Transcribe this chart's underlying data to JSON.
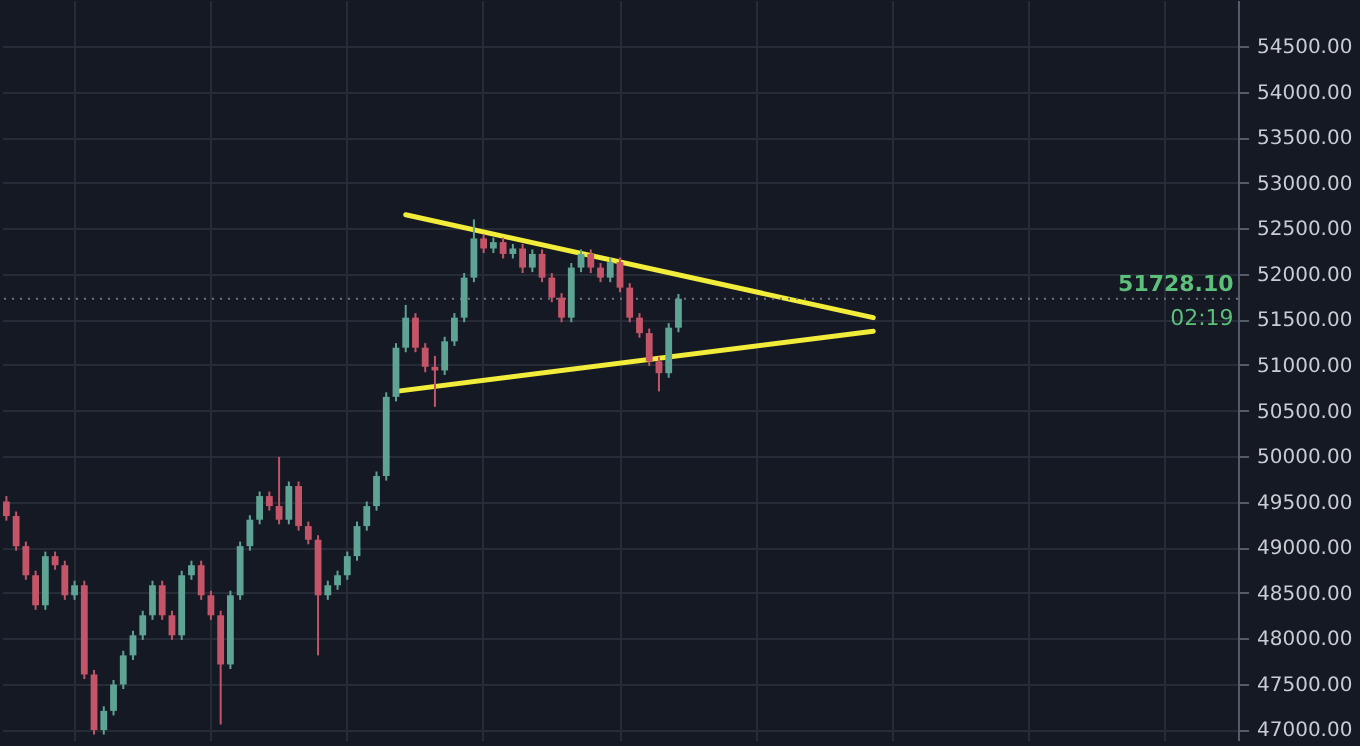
{
  "chart_data": {
    "type": "candlestick",
    "tick_labels": "y",
    "grid": true,
    "categories": [
      null,
      null,
      null,
      null,
      null,
      null,
      null,
      null,
      null,
      null,
      null,
      null,
      null,
      null,
      null,
      null,
      null,
      null,
      null,
      null,
      null,
      null,
      null,
      null,
      null,
      null,
      null,
      null,
      null,
      null,
      null,
      null,
      null,
      null,
      null,
      null,
      null,
      null,
      null,
      null,
      null,
      null,
      null,
      null,
      null,
      null,
      null,
      null,
      null,
      null,
      null,
      null,
      null,
      null,
      null,
      null,
      null,
      null,
      null,
      null,
      null,
      null,
      null,
      null,
      null,
      null,
      null,
      null,
      null,
      null,
      null,
      null,
      null,
      null,
      null,
      null,
      null,
      null,
      null,
      null,
      null,
      null,
      null,
      null,
      null,
      null,
      null,
      null,
      null,
      null,
      null,
      null,
      null,
      null,
      null,
      null,
      null,
      null,
      null,
      null,
      null,
      null,
      null,
      null,
      null,
      null,
      null,
      null,
      null,
      null,
      null,
      null,
      null,
      null,
      null,
      null,
      null,
      null,
      null,
      null,
      null,
      null,
      null,
      null,
      null,
      null,
      null
    ],
    "ohlc": [
      [
        49500,
        49560,
        49290,
        49340
      ],
      [
        49340,
        49390,
        48960,
        49010
      ],
      [
        49010,
        49060,
        48640,
        48690
      ],
      [
        48690,
        48740,
        48310,
        48360
      ],
      [
        48360,
        48950,
        48310,
        48900
      ],
      [
        48900,
        48950,
        48750,
        48800
      ],
      [
        48800,
        48850,
        48420,
        48470
      ],
      [
        48470,
        48630,
        48420,
        48580
      ],
      [
        48580,
        48630,
        47550,
        47600
      ],
      [
        47600,
        47650,
        46940,
        46990
      ],
      [
        46990,
        47250,
        46940,
        47200
      ],
      [
        47200,
        47540,
        47150,
        47490
      ],
      [
        47490,
        47860,
        47440,
        47810
      ],
      [
        47810,
        48080,
        47760,
        48030
      ],
      [
        48030,
        48300,
        47980,
        48250
      ],
      [
        48250,
        48630,
        48200,
        48580
      ],
      [
        48580,
        48630,
        48200,
        48250
      ],
      [
        48250,
        48300,
        47980,
        48030
      ],
      [
        48030,
        48740,
        47980,
        48690
      ],
      [
        48690,
        48850,
        48640,
        48800
      ],
      [
        48800,
        48850,
        48420,
        48470
      ],
      [
        48470,
        48520,
        48200,
        48250
      ],
      [
        48250,
        48300,
        47050,
        47710
      ],
      [
        47710,
        48520,
        47660,
        48470
      ],
      [
        48470,
        49060,
        48420,
        49010
      ],
      [
        49010,
        49350,
        48960,
        49300
      ],
      [
        49300,
        49610,
        49250,
        49560
      ],
      [
        49560,
        49610,
        49400,
        49450
      ],
      [
        49450,
        49990,
        49250,
        49300
      ],
      [
        49300,
        49720,
        49250,
        49670
      ],
      [
        49670,
        49720,
        49180,
        49230
      ],
      [
        49230,
        49280,
        49030,
        49080
      ],
      [
        49080,
        49130,
        47810,
        48470
      ],
      [
        48470,
        48630,
        48420,
        48580
      ],
      [
        48580,
        48740,
        48530,
        48690
      ],
      [
        48690,
        48950,
        48640,
        48900
      ],
      [
        48900,
        49280,
        48850,
        49230
      ],
      [
        49230,
        49500,
        49180,
        49450
      ],
      [
        49450,
        49830,
        49400,
        49780
      ],
      [
        49780,
        50700,
        49730,
        50650
      ],
      [
        50650,
        51240,
        50600,
        51190
      ],
      [
        51190,
        51660,
        51140,
        51520
      ],
      [
        51520,
        51570,
        51140,
        51190
      ],
      [
        51190,
        51240,
        50920,
        50980
      ],
      [
        50980,
        51100,
        50540,
        50940
      ],
      [
        50940,
        51310,
        50890,
        51260
      ],
      [
        51260,
        51570,
        51210,
        51520
      ],
      [
        51520,
        52010,
        51470,
        51960
      ],
      [
        51960,
        52600,
        51910,
        52390
      ],
      [
        52390,
        52440,
        52230,
        52280
      ],
      [
        52280,
        52400,
        52230,
        52350
      ],
      [
        52350,
        52400,
        52170,
        52220
      ],
      [
        52220,
        52330,
        52170,
        52280
      ],
      [
        52280,
        52330,
        52010,
        52070
      ],
      [
        52070,
        52270,
        52020,
        52220
      ],
      [
        52220,
        52270,
        51910,
        51960
      ],
      [
        51960,
        52010,
        51690,
        51740
      ],
      [
        51740,
        51790,
        51470,
        51520
      ],
      [
        51520,
        52120,
        51470,
        52070
      ],
      [
        52070,
        52270,
        52020,
        52220
      ],
      [
        52220,
        52270,
        52010,
        52070
      ],
      [
        52070,
        52120,
        51910,
        51960
      ],
      [
        51960,
        52180,
        51910,
        52130
      ],
      [
        52130,
        52180,
        51800,
        51850
      ],
      [
        51850,
        51900,
        51470,
        51520
      ],
      [
        51520,
        51570,
        51300,
        51350
      ],
      [
        51350,
        51400,
        50990,
        51040
      ],
      [
        51040,
        51090,
        50710,
        50910
      ],
      [
        50910,
        51460,
        50860,
        51410
      ],
      [
        51410,
        51780,
        51360,
        51728.1
      ],
      null,
      null,
      null,
      null,
      null,
      null,
      null,
      null,
      null,
      null,
      null,
      null,
      null,
      null,
      null,
      null,
      null,
      null,
      null,
      null,
      null,
      null,
      null,
      null,
      null,
      null,
      null,
      null,
      null,
      null,
      null,
      null,
      null,
      null,
      null,
      null,
      null,
      null,
      null,
      null,
      null,
      null,
      null,
      null,
      null,
      null,
      null,
      null,
      null,
      null,
      null,
      null,
      null,
      null,
      null,
      null,
      null
    ],
    "series": [
      {
        "type": "line",
        "color": "#f2ec3a",
        "values": [
          null,
          null,
          null,
          null,
          null,
          null,
          null,
          null,
          null,
          null,
          null,
          null,
          null,
          null,
          null,
          null,
          null,
          null,
          null,
          null,
          null,
          null,
          null,
          null,
          null,
          null,
          null,
          null,
          null,
          null,
          null,
          null,
          null,
          null,
          null,
          null,
          null,
          null,
          null,
          null,
          null,
          52650,
          null,
          null,
          null,
          null,
          null,
          null,
          null,
          null,
          null,
          null,
          null,
          null,
          null,
          null,
          null,
          null,
          null,
          null,
          null,
          null,
          null,
          null,
          null,
          null,
          null,
          null,
          null,
          null,
          null,
          null,
          null,
          null,
          null,
          null,
          null,
          null,
          null,
          null,
          null,
          null,
          null,
          null,
          null,
          null,
          null,
          null,
          null,
          51520,
          null,
          null,
          null,
          null,
          null,
          null,
          null,
          null,
          null,
          null,
          null,
          null,
          null,
          null,
          null,
          null,
          null,
          null,
          null,
          null,
          null,
          null,
          null,
          null,
          null,
          null,
          null,
          null,
          null,
          null,
          null,
          null,
          null,
          null,
          null,
          null,
          null
        ]
      },
      {
        "type": "line",
        "color": "#f2ec3a",
        "values": [
          null,
          null,
          null,
          null,
          null,
          null,
          null,
          null,
          null,
          null,
          null,
          null,
          null,
          null,
          null,
          null,
          null,
          null,
          null,
          null,
          null,
          null,
          null,
          null,
          null,
          null,
          null,
          null,
          null,
          null,
          null,
          null,
          null,
          null,
          null,
          null,
          null,
          null,
          null,
          null,
          50710,
          null,
          null,
          null,
          null,
          null,
          null,
          null,
          null,
          null,
          null,
          null,
          null,
          null,
          null,
          null,
          null,
          null,
          null,
          null,
          null,
          null,
          null,
          null,
          null,
          null,
          null,
          null,
          null,
          null,
          null,
          null,
          null,
          null,
          null,
          null,
          null,
          null,
          null,
          null,
          null,
          null,
          null,
          null,
          null,
          null,
          null,
          null,
          null,
          51370,
          null,
          null,
          null,
          null,
          null,
          null,
          null,
          null,
          null,
          null,
          null,
          null,
          null,
          null,
          null,
          null,
          null,
          null,
          null,
          null,
          null,
          null,
          null,
          null,
          null,
          null,
          null,
          null,
          null,
          null,
          null,
          null,
          null,
          null,
          null,
          null,
          null
        ]
      }
    ],
    "ylim": [
      46880,
      55010
    ],
    "yticks": [
      {
        "value": 47000,
        "label": "47000.00"
      },
      {
        "value": 47500,
        "label": "47500.00"
      },
      {
        "value": 48000,
        "label": "48000.00"
      },
      {
        "value": 48500,
        "label": "48500.00"
      },
      {
        "value": 49000,
        "label": "49000.00"
      },
      {
        "value": 49500,
        "label": "49500.00"
      },
      {
        "value": 50000,
        "label": "50000.00"
      },
      {
        "value": 50500,
        "label": "50500.00"
      },
      {
        "value": 51000,
        "label": "51000.00"
      },
      {
        "value": 51500,
        "label": "51500.00"
      },
      {
        "value": 52000,
        "label": "52000.00"
      },
      {
        "value": 52500,
        "label": "52500.00"
      },
      {
        "value": 53000,
        "label": "53000.00"
      },
      {
        "value": 53500,
        "label": "53500.00"
      },
      {
        "value": 54000,
        "label": "54000.00"
      },
      {
        "value": 54500,
        "label": "54500.00"
      }
    ],
    "ref_lines": [
      {
        "axis": "y",
        "value": 51728.1,
        "label": "51728.10",
        "color": "#6b7280",
        "line_style": "dotted"
      }
    ],
    "annotations": [
      "02:19"
    ]
  }
}
